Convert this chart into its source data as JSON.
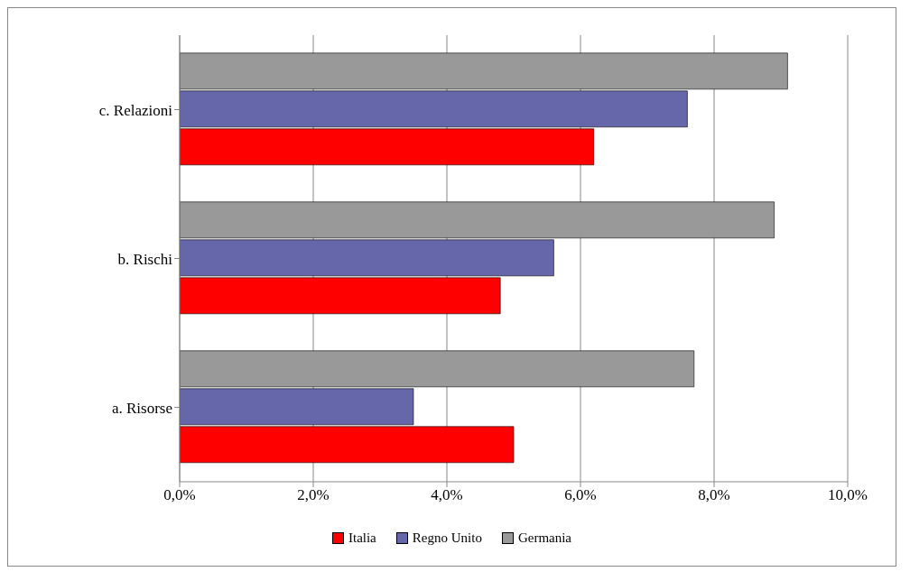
{
  "chart_data": {
    "type": "bar",
    "orientation": "horizontal",
    "categories": [
      "c. Relazioni",
      "b. Rischi",
      "a. Risorse"
    ],
    "series": [
      {
        "name": "Italia",
        "color": "#ff0000",
        "values": [
          6.2,
          4.8,
          5.0
        ]
      },
      {
        "name": "Regno Unito",
        "color": "#6666aa",
        "values": [
          7.6,
          5.6,
          3.5
        ]
      },
      {
        "name": "Germania",
        "color": "#999999",
        "values": [
          9.1,
          8.9,
          7.7
        ]
      }
    ],
    "xlim": [
      0,
      10
    ],
    "xticks": [
      {
        "value": 0,
        "label": "0,0%"
      },
      {
        "value": 2,
        "label": "2,0%"
      },
      {
        "value": 4,
        "label": "4,0%"
      },
      {
        "value": 6,
        "label": "6,0%"
      },
      {
        "value": 8,
        "label": "8,0%"
      },
      {
        "value": 10,
        "label": "10,0%"
      }
    ],
    "grid": "x",
    "legend": "bottom"
  }
}
